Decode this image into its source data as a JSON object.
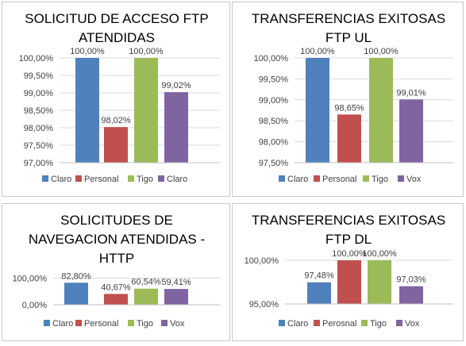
{
  "chart_data": [
    {
      "type": "bar",
      "title": "SOLICITUD DE ACCESO FTP ATENDIDAS",
      "title_lines": [
        "SOLICITUD DE ACCESO FTP",
        "ATENDIDAS"
      ],
      "categories": [
        "Claro",
        "Personal",
        "Tigo",
        "Claro"
      ],
      "values": [
        100.0,
        98.02,
        100.0,
        99.02
      ],
      "data_labels": [
        "100,00%",
        "98,02%",
        "100,00%",
        "99,02%"
      ],
      "colors": [
        "#4f81bd",
        "#c0504d",
        "#9bbb59",
        "#8064a2"
      ],
      "ylim": [
        97.0,
        100.0
      ],
      "yticks": [
        100.0,
        99.5,
        99.0,
        98.5,
        98.0,
        97.5,
        97.0
      ],
      "ytick_labels": [
        "100,00%",
        "99,50%",
        "99,00%",
        "98,50%",
        "98,00%",
        "97,50%",
        "97,00%"
      ],
      "legend_position": "bottom"
    },
    {
      "type": "bar",
      "title": "TRANSFERENCIAS EXITOSAS FTP UL",
      "title_lines": [
        "TRANSFERENCIAS EXITOSAS",
        "FTP UL"
      ],
      "categories": [
        "Claro",
        "Personal",
        "Tigo",
        "Vox"
      ],
      "values": [
        100.0,
        98.65,
        100.0,
        99.01
      ],
      "data_labels": [
        "100,00%",
        "98,65%",
        "100,00%",
        "99,01%"
      ],
      "colors": [
        "#4f81bd",
        "#c0504d",
        "#9bbb59",
        "#8064a2"
      ],
      "ylim": [
        97.5,
        100.0
      ],
      "yticks": [
        100.0,
        99.5,
        99.0,
        98.5,
        98.0,
        97.5
      ],
      "ytick_labels": [
        "100,00%",
        "99,50%",
        "99,00%",
        "98,50%",
        "98,00%",
        "97,50%"
      ],
      "legend_position": "bottom"
    },
    {
      "type": "bar",
      "title": "SOLICITUDES DE NAVEGACION ATENDIDAS - HTTP",
      "title_lines": [
        "SOLICITUDES DE",
        "NAVEGACION ATENDIDAS -",
        "HTTP"
      ],
      "categories": [
        "Claro",
        "Personal",
        "Tigo",
        "Vox"
      ],
      "values": [
        82.8,
        40.67,
        60.54,
        59.41
      ],
      "data_labels": [
        "82,80%",
        "40,67%",
        "60,54%",
        "59,41%"
      ],
      "colors": [
        "#4f81bd",
        "#c0504d",
        "#9bbb59",
        "#8064a2"
      ],
      "ylim": [
        0.0,
        200.0
      ],
      "yticks": [
        100.0,
        0.0
      ],
      "ytick_labels": [
        "100,00%",
        "0,00%"
      ],
      "legend_position": "bottom"
    },
    {
      "type": "bar",
      "title": "TRANSFERENCIAS EXITOSAS FTP DL",
      "title_lines": [
        "TRANSFERENCIAS EXITOSAS",
        "FTP DL"
      ],
      "categories": [
        "Claro",
        "Perosnal",
        "Tigo",
        "Vox"
      ],
      "values": [
        97.48,
        100.0,
        100.0,
        97.03
      ],
      "data_labels": [
        "97,48%",
        "100,00%",
        "100,00%",
        "97,03%"
      ],
      "colors": [
        "#4f81bd",
        "#c0504d",
        "#9bbb59",
        "#8064a2"
      ],
      "ylim": [
        95.0,
        101.0
      ],
      "yticks": [
        100.0,
        95.0
      ],
      "ytick_labels": [
        "100,00%",
        "95,00%"
      ],
      "legend_position": "bottom"
    }
  ]
}
